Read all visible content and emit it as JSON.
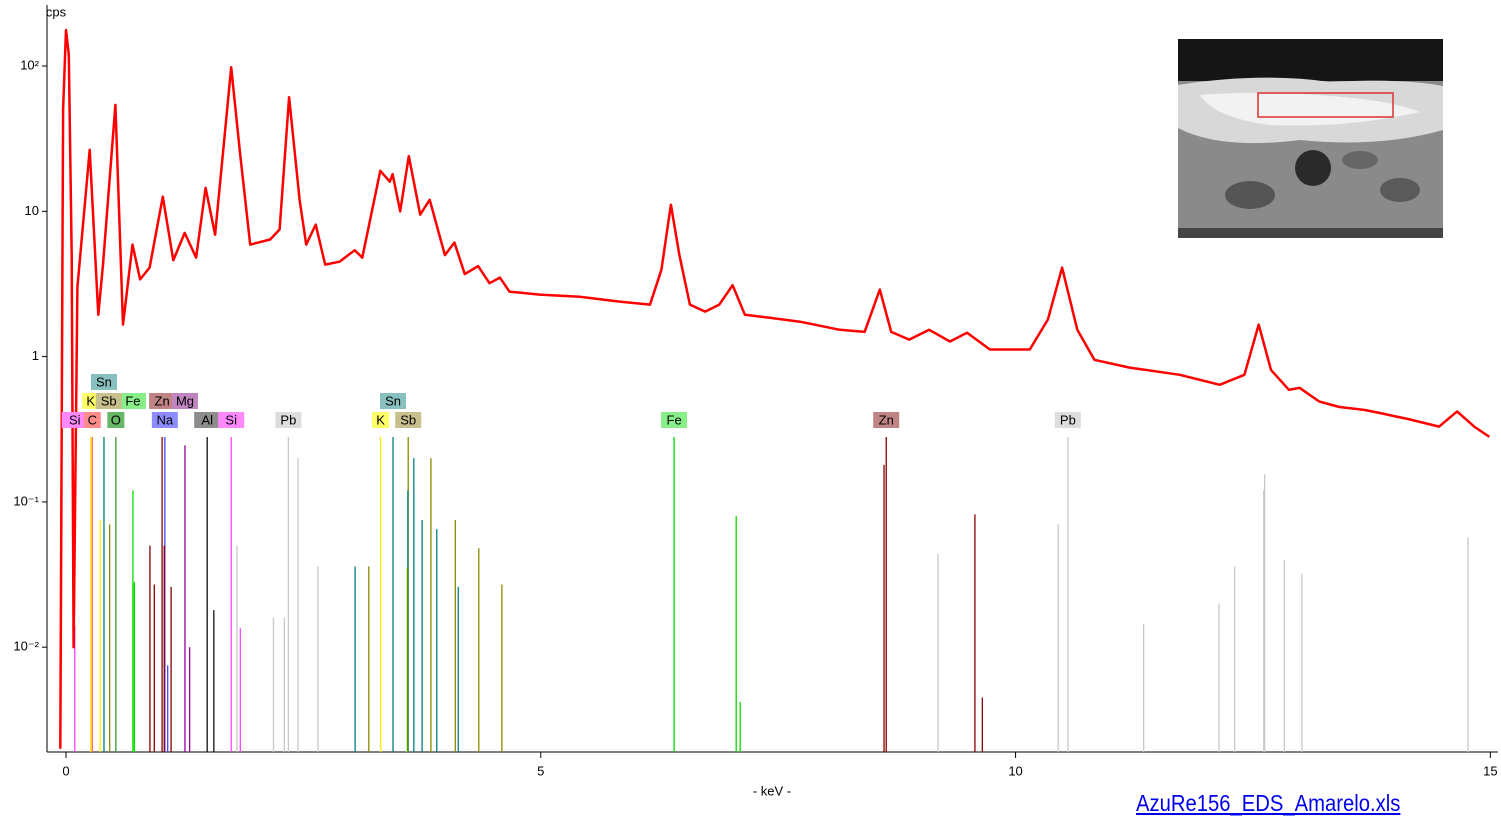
{
  "chart_data": {
    "type": "line",
    "y_label": "cps",
    "x_label": "- keV -",
    "log_y": true,
    "xlim": [
      -0.2,
      15.07
    ],
    "ylim": [
      0.0019,
      263
    ],
    "xticks": [
      0,
      5,
      10,
      15
    ],
    "yticks": [
      {
        "value": 100,
        "label": "10²"
      },
      10,
      1,
      {
        "value": 0.1,
        "label": "10⁻¹"
      },
      {
        "value": 0.01,
        "label": "10⁻²"
      }
    ],
    "series": [
      {
        "color": "#ff0000",
        "x": [
          -0.06,
          -0.03,
          0.0,
          0.03,
          0.06,
          0.08,
          0.12,
          0.25,
          0.34,
          0.39,
          0.52,
          0.6,
          0.7,
          0.78,
          0.88,
          1.02,
          1.13,
          1.25,
          1.37,
          1.47,
          1.57,
          1.74,
          1.83,
          1.94,
          2.15,
          2.25,
          2.35,
          2.46,
          2.53,
          2.63,
          2.73,
          2.88,
          3.04,
          3.12,
          3.31,
          3.41,
          3.44,
          3.52,
          3.61,
          3.73,
          3.83,
          3.99,
          4.09,
          4.2,
          4.34,
          4.46,
          4.57,
          4.67,
          4.99,
          5.41,
          5.83,
          6.15,
          6.27,
          6.37,
          6.46,
          6.57,
          6.73,
          6.88,
          7.02,
          7.15,
          7.41,
          7.73,
          8.15,
          8.41,
          8.57,
          8.69,
          8.88,
          9.09,
          9.31,
          9.49,
          9.73,
          10.15,
          10.34,
          10.49,
          10.65,
          10.83,
          11.2,
          11.73,
          12.15,
          12.41,
          12.56,
          12.69,
          12.88,
          12.99,
          13.2,
          13.41,
          13.67,
          13.83,
          14.15,
          14.46,
          14.65,
          14.83,
          14.99
        ],
        "values": [
          0.002,
          50,
          177,
          120,
          5,
          0.01,
          3,
          26.5,
          1.94,
          4.3,
          54,
          1.66,
          5.9,
          3.4,
          4.1,
          12.6,
          4.6,
          7.1,
          4.8,
          14.5,
          6.9,
          98,
          26,
          5.9,
          6.4,
          7.5,
          61,
          12,
          5.9,
          8.1,
          4.3,
          4.5,
          5.4,
          4.8,
          19,
          16,
          18,
          10,
          24,
          9.5,
          12,
          5,
          6.1,
          3.7,
          4.2,
          3.2,
          3.5,
          2.8,
          2.67,
          2.58,
          2.39,
          2.28,
          3.96,
          11.1,
          5.0,
          2.28,
          2.04,
          2.28,
          3.1,
          1.94,
          1.85,
          1.74,
          1.53,
          1.48,
          2.89,
          1.48,
          1.31,
          1.53,
          1.27,
          1.46,
          1.12,
          1.12,
          1.8,
          4.1,
          1.53,
          0.95,
          0.84,
          0.75,
          0.64,
          0.75,
          1.66,
          0.81,
          0.59,
          0.61,
          0.49,
          0.45,
          0.43,
          0.41,
          0.37,
          0.33,
          0.42,
          0.33,
          0.28
        ]
      }
    ],
    "markers": [
      {
        "color": "#ff44ff",
        "lines": [
          [
            1.74,
            0.28
          ],
          [
            1.836,
            0.0135
          ],
          [
            0.092,
            0.014
          ]
        ]
      },
      {
        "color": "#ff6060",
        "lines": [
          [
            0.277,
            0.28
          ]
        ]
      },
      {
        "color": "#339933",
        "lines": [
          [
            0.525,
            0.28
          ]
        ]
      },
      {
        "color": "#4444ff",
        "lines": [
          [
            1.041,
            0.28
          ],
          [
            1.071,
            0.0075
          ]
        ]
      },
      {
        "color": "#111111",
        "lines": [
          [
            1.487,
            0.28
          ],
          [
            1.557,
            0.018
          ]
        ]
      },
      {
        "color": "#c8c8c8",
        "lines": [
          [
            2.342,
            0.28
          ],
          [
            2.443,
            0.2
          ],
          [
            2.185,
            0.016
          ],
          [
            2.653,
            0.036
          ],
          [
            2.3,
            0.016
          ],
          [
            1.8,
            0.05
          ],
          [
            10.551,
            0.28
          ],
          [
            12.614,
            0.12
          ],
          [
            9.184,
            0.044
          ],
          [
            10.449,
            0.07
          ],
          [
            12.623,
            0.155
          ],
          [
            13.015,
            0.032
          ],
          [
            12.142,
            0.02
          ],
          [
            11.349,
            0.0145
          ],
          [
            12.307,
            0.036
          ],
          [
            12.83,
            0.04
          ],
          [
            14.764,
            0.057
          ]
        ]
      },
      {
        "color": "#ffee00",
        "lines": [
          [
            3.313,
            0.28
          ],
          [
            3.59,
            0.035
          ],
          [
            0.26,
            0.28
          ],
          [
            0.36,
            0.075
          ]
        ]
      },
      {
        "color": "#8a8a00",
        "lines": [
          [
            3.604,
            0.28
          ],
          [
            3.843,
            0.2
          ],
          [
            4.1,
            0.075
          ],
          [
            4.347,
            0.048
          ],
          [
            4.59,
            0.027
          ],
          [
            3.189,
            0.036
          ],
          [
            0.46,
            0.07
          ]
        ]
      },
      {
        "color": "#00dd00",
        "lines": [
          [
            6.404,
            0.28
          ],
          [
            7.058,
            0.08
          ],
          [
            0.705,
            0.12
          ],
          [
            7.1,
            0.0042
          ],
          [
            0.72,
            0.028
          ]
        ]
      },
      {
        "color": "#880000",
        "lines": [
          [
            8.638,
            0.28
          ],
          [
            8.615,
            0.18
          ],
          [
            9.572,
            0.082
          ],
          [
            1.012,
            0.28
          ],
          [
            1.035,
            0.05
          ],
          [
            0.884,
            0.05
          ],
          [
            9.65,
            0.0045
          ],
          [
            1.107,
            0.026
          ],
          [
            0.93,
            0.027
          ]
        ]
      },
      {
        "color": "#008080",
        "lines": [
          [
            3.444,
            0.28
          ],
          [
            3.663,
            0.2
          ],
          [
            3.905,
            0.065
          ],
          [
            4.131,
            0.026
          ],
          [
            0.4,
            0.28
          ],
          [
            3.045,
            0.036
          ],
          [
            3.6,
            0.12
          ],
          [
            3.75,
            0.075
          ]
        ]
      },
      {
        "color": "#990099",
        "lines": [
          [
            1.253,
            0.245
          ],
          [
            1.302,
            0.01
          ]
        ]
      }
    ],
    "labels": [
      {
        "text": "Si",
        "keV": 0.092,
        "color": "#ff88ff"
      },
      {
        "text": "C",
        "keV": 0.277,
        "color": "#ff8c8c"
      },
      {
        "text": "O",
        "keV": 0.525,
        "color": "#66b866"
      },
      {
        "text": "Na",
        "keV": 1.041,
        "color": "#8c8cff"
      },
      {
        "text": "Al",
        "keV": 1.487,
        "color": "#8c8c8c"
      },
      {
        "text": "Si",
        "keV": 1.74,
        "color": "#ff88ff"
      },
      {
        "text": "Pb",
        "keV": 2.342,
        "color": "#dddddd"
      },
      {
        "text": "K",
        "keV": 3.313,
        "color": "#ffff66"
      },
      {
        "text": "Sb",
        "keV": 3.604,
        "color": "#c8c08c"
      },
      {
        "text": "Fe",
        "keV": 6.404,
        "color": "#88ee88"
      },
      {
        "text": "Zn",
        "keV": 8.638,
        "color": "#c08484"
      },
      {
        "text": "Pb",
        "keV": 10.551,
        "color": "#dddddd"
      },
      {
        "text": "K",
        "keV": 0.26,
        "color": "#ffff66"
      },
      {
        "text": "Fe",
        "keV": 0.705,
        "color": "#88ee88"
      },
      {
        "text": "Zn",
        "keV": 1.012,
        "color": "#c08484"
      },
      {
        "text": "Sn",
        "keV": 3.444,
        "color": "#88c0c0"
      },
      {
        "text": "Sb",
        "keV": 0.45,
        "color": "#c8c08c"
      },
      {
        "text": "Mg",
        "keV": 1.253,
        "color": "#c084c0"
      },
      {
        "text": "Sn",
        "keV": 0.4,
        "color": "#88c0c0"
      }
    ]
  },
  "link": "AzuRe156_EDS_Amarelo.xls"
}
